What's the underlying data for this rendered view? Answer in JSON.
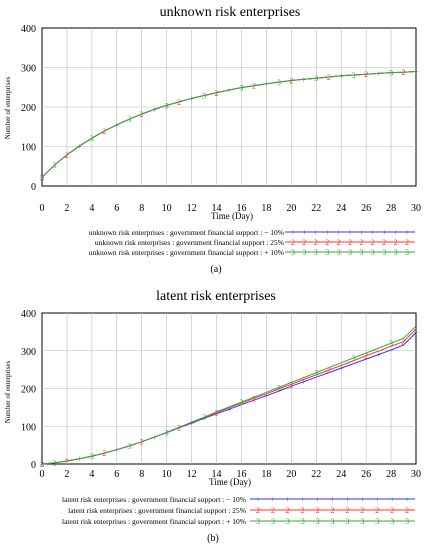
{
  "chart_data": [
    {
      "type": "line",
      "panel_label": "(a)",
      "title": "unknown risk enterprises",
      "xlabel": "Time (Day)",
      "ylabel": "Number of enterprises",
      "xlim": [
        0,
        30
      ],
      "ylim": [
        0,
        400
      ],
      "x_ticks": [
        "0",
        "2",
        "4",
        "6",
        "8",
        "10",
        "12",
        "14",
        "16",
        "18",
        "20",
        "22",
        "24",
        "26",
        "28",
        "30"
      ],
      "y_ticks": [
        "0",
        "100",
        "200",
        "300",
        "400"
      ],
      "grid": true,
      "legend_position": "bottom",
      "x": [
        0,
        1,
        2,
        3,
        4,
        5,
        6,
        7,
        8,
        9,
        10,
        11,
        12,
        13,
        14,
        15,
        16,
        17,
        18,
        19,
        20,
        21,
        22,
        23,
        24,
        25,
        26,
        27,
        28,
        29,
        30
      ],
      "series": [
        {
          "name": "unknown risk enterprises : government financial support : − 10%",
          "marker": "1",
          "color": "#3333ff",
          "values": [
            22,
            53,
            79,
            101,
            121,
            139,
            155,
            169,
            182,
            194,
            204,
            213,
            222,
            229,
            236,
            243,
            249,
            254,
            259,
            263,
            267,
            270,
            273,
            276,
            279,
            281,
            283,
            285,
            287,
            288,
            290
          ]
        },
        {
          "name": "unknown risk enterprises : government financial support : 25%",
          "marker": "2",
          "color": "#ff3333",
          "values": [
            22,
            53,
            79,
            101,
            121,
            139,
            155,
            169,
            182,
            194,
            204,
            213,
            222,
            229,
            236,
            243,
            249,
            254,
            259,
            263,
            267,
            270,
            273,
            276,
            279,
            281,
            283,
            285,
            287,
            288,
            290
          ]
        },
        {
          "name": "unknown risk enterprises : government financial support : + 10%",
          "marker": "3",
          "color": "#33aa33",
          "values": [
            22,
            53,
            79,
            101,
            121,
            139,
            155,
            169,
            182,
            194,
            204,
            213,
            222,
            229,
            236,
            243,
            249,
            254,
            259,
            263,
            267,
            270,
            273,
            276,
            279,
            281,
            283,
            285,
            287,
            288,
            290
          ]
        }
      ]
    },
    {
      "type": "line",
      "panel_label": "(b)",
      "title": "latent risk enterprises",
      "xlabel": "Time (Day)",
      "ylabel": "Number of enterprises",
      "xlim": [
        0,
        30
      ],
      "ylim": [
        0,
        400
      ],
      "x_ticks": [
        "0",
        "2",
        "4",
        "6",
        "8",
        "10",
        "12",
        "14",
        "16",
        "18",
        "20",
        "22",
        "24",
        "26",
        "28",
        "30"
      ],
      "y_ticks": [
        "0",
        "100",
        "200",
        "300",
        "400"
      ],
      "grid": true,
      "legend_position": "bottom",
      "x": [
        0,
        1,
        2,
        3,
        4,
        5,
        6,
        7,
        8,
        9,
        10,
        11,
        12,
        13,
        14,
        15,
        16,
        17,
        18,
        19,
        20,
        21,
        22,
        23,
        24,
        25,
        26,
        27,
        28,
        29,
        30
      ],
      "series": [
        {
          "name": "latent risk enterprises : government financial support : − 10%",
          "marker": "1",
          "color": "#3333ff",
          "values": [
            0,
            3,
            8,
            14,
            21,
            29,
            38,
            48,
            59,
            71,
            83,
            96,
            108,
            121,
            133,
            145,
            157,
            169,
            181,
            193,
            206,
            218,
            230,
            242,
            254,
            266,
            278,
            290,
            302,
            315,
            348
          ]
        },
        {
          "name": "latent risk enterprises : government financial support : 25%",
          "marker": "2",
          "color": "#ff3333",
          "values": [
            0,
            3,
            8,
            14,
            21,
            29,
            38,
            48,
            59,
            71,
            84,
            97,
            110,
            123,
            136,
            149,
            161,
            174,
            186,
            199,
            211,
            224,
            236,
            249,
            261,
            274,
            287,
            299,
            312,
            324,
            358
          ]
        },
        {
          "name": "latent risk enterprises : government financial support : + 10%",
          "marker": "3",
          "color": "#33aa33",
          "values": [
            0,
            3,
            8,
            14,
            21,
            29,
            38,
            48,
            59,
            71,
            84,
            97,
            111,
            124,
            138,
            151,
            164,
            177,
            190,
            203,
            216,
            229,
            242,
            255,
            268,
            281,
            294,
            307,
            320,
            333,
            365
          ]
        }
      ]
    }
  ]
}
